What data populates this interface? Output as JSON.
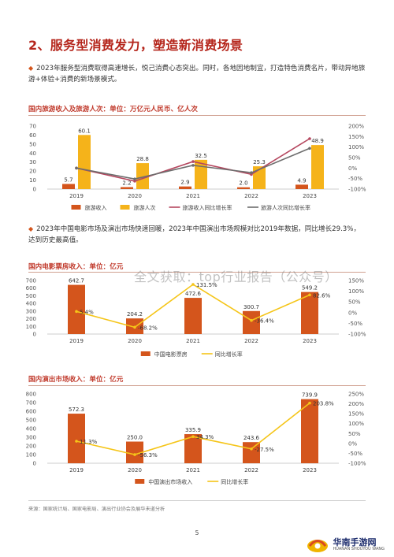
{
  "page": {
    "title": "2、服务型消费发力，塑造新消费场景",
    "para1": "2023年服务型消费取得高速增长，悦己消费心态突出。同时，各地因地制宜，打造特色消费名片，带动异地旅游+体验+消费的新场景模式。",
    "para2": "2023年中国电影市场及演出市场快速回暖，2023年中国演出市场规模对比2019年数据，同比增长29.3%，达到历史最高值。",
    "bullet": "◆",
    "watermark": "全文获取：top行业报告（公众号）",
    "source": "来源：国家统计局、国家电影局、演出行业协会及展华未道分析",
    "page_number": "5",
    "logo": {
      "name": "华南手游网",
      "sub": "HUANAN SHOUYOU WANG"
    }
  },
  "colors": {
    "bar": "#d4551c",
    "bar_light": "#f5b31a",
    "line_yellow": "#f5c518",
    "line_pink": "#b5475f",
    "line_gray": "#6d6d6d",
    "title_red": "#b5251b"
  },
  "chart_data": [
    {
      "type": "bar",
      "title": "国内旅游收入及旅游人次：单位：万亿元人民币、亿人次",
      "categories": [
        "2019",
        "2020",
        "2021",
        "2022",
        "2023"
      ],
      "ylim": [
        0,
        70
      ],
      "yticks": [
        "0",
        "10",
        "20",
        "30",
        "40",
        "50",
        "60",
        "70"
      ],
      "y2ticks": [
        "-100%",
        "-50%",
        "0%",
        "50%",
        "100%",
        "150%",
        "200%"
      ],
      "y2lim": [
        -100,
        200
      ],
      "series": [
        {
          "name": "旅游收入",
          "kind": "bar",
          "values": [
            5.7,
            2.2,
            2.9,
            2.0,
            4.9
          ],
          "labels": [
            "5.7",
            "2.2",
            "2.9",
            "2.0",
            "4.9"
          ]
        },
        {
          "name": "旅游人次",
          "kind": "bar",
          "values": [
            60.1,
            28.8,
            32.5,
            25.3,
            48.9
          ],
          "labels": [
            "60.1",
            "28.8",
            "32.5",
            "25.3",
            "48.9"
          ]
        },
        {
          "name": "旅游收入同比增长率",
          "kind": "line",
          "axis": "right",
          "values": [
            0,
            -62,
            31,
            -30,
            140
          ]
        },
        {
          "name": "旅游人次同比增长率",
          "kind": "line",
          "axis": "right",
          "values": [
            0,
            -52,
            13,
            -22,
            94
          ]
        }
      ]
    },
    {
      "type": "bar",
      "title": "国内电影票房收入：单位：亿元",
      "categories": [
        "2019",
        "2020",
        "2021",
        "2022",
        "2023"
      ],
      "ylim": [
        0,
        700
      ],
      "yticks": [
        "0",
        "100",
        "200",
        "300",
        "400",
        "500",
        "600",
        "700"
      ],
      "y2ticks": [
        "-100%",
        "-50%",
        "0%",
        "50%",
        "100%",
        "150%"
      ],
      "y2lim": [
        -100,
        150
      ],
      "series": [
        {
          "name": "中国电影票房",
          "kind": "bar",
          "values": [
            642.7,
            204.2,
            472.6,
            300.7,
            549.2
          ],
          "labels": [
            "642.7",
            "204.2",
            "472.6",
            "300.7",
            "549.2"
          ]
        },
        {
          "name": "同比增长率",
          "kind": "line",
          "axis": "right",
          "values": [
            5.4,
            -68.2,
            131.5,
            -36.4,
            82.6
          ],
          "labels": [
            "5.4%",
            "-68.2%",
            "131.5%",
            "-36.4%",
            "82.6%"
          ]
        }
      ]
    },
    {
      "type": "bar",
      "title": "国内演出市场收入：单位：亿元",
      "categories": [
        "2019",
        "2020",
        "2021",
        "2022",
        "2023"
      ],
      "ylim": [
        0,
        800
      ],
      "yticks": [
        "0",
        "100",
        "200",
        "300",
        "400",
        "500",
        "600",
        "700",
        "800"
      ],
      "y2ticks": [
        "-100%",
        "-50%",
        "0%",
        "50%",
        "100%",
        "150%",
        "200%",
        "250%"
      ],
      "y2lim": [
        -100,
        250
      ],
      "series": [
        {
          "name": "中国演出市场收入",
          "kind": "bar",
          "values": [
            572.3,
            250.0,
            335.9,
            243.6,
            739.9
          ],
          "labels": [
            "572.3",
            "250.0",
            "335.9",
            "243.6",
            "739.9"
          ]
        },
        {
          "name": "同比增长率",
          "kind": "line",
          "axis": "right",
          "values": [
            11.3,
            -56.3,
            34.3,
            -27.5,
            203.8
          ],
          "labels": [
            "11.3%",
            "-56.3%",
            "34.3%",
            "-27.5%",
            "203.8%"
          ]
        }
      ]
    }
  ]
}
